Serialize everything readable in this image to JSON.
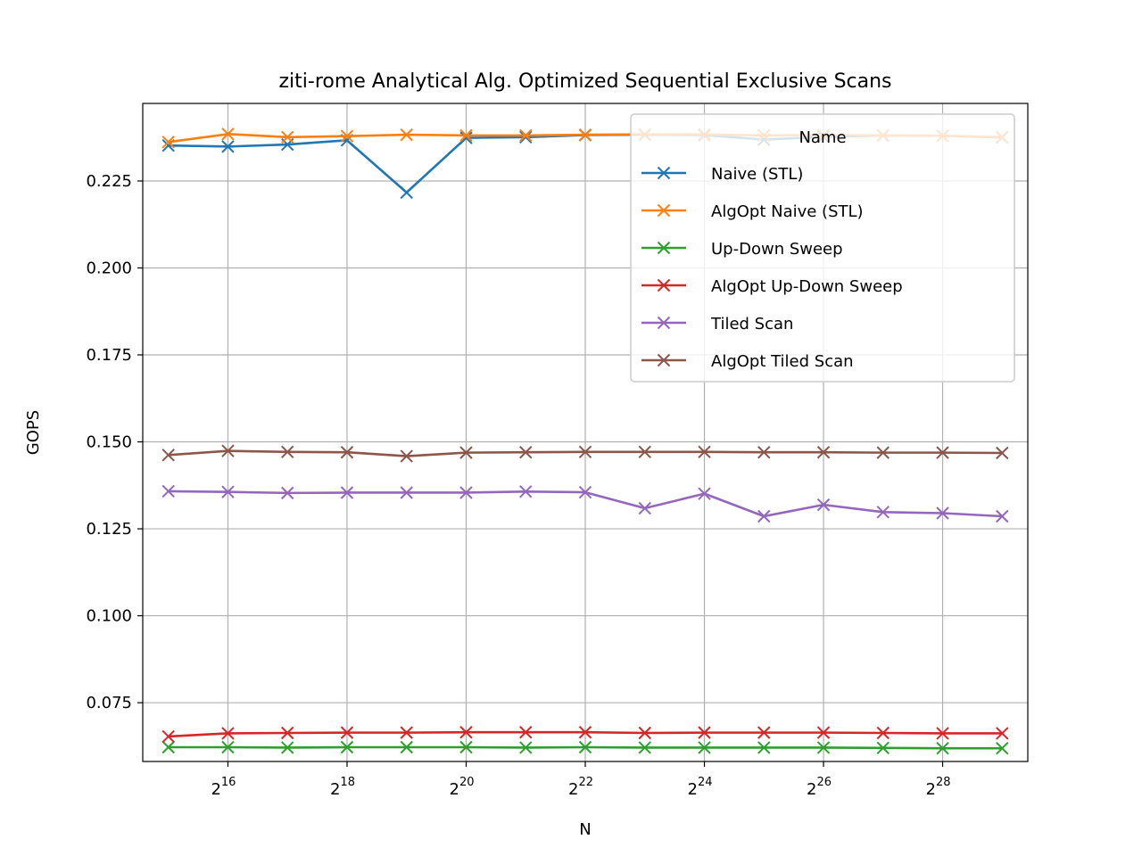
{
  "chart_data": {
    "type": "line",
    "title": "ziti-rome Analytical Alg. Optimized Sequential Exclusive Scans",
    "xlabel": "N",
    "ylabel": "GOPS",
    "x_scale": "log2",
    "x_exponents": [
      15,
      16,
      17,
      18,
      19,
      20,
      21,
      22,
      23,
      24,
      25,
      26,
      27,
      28,
      29
    ],
    "x_tick_exponents": [
      16,
      18,
      20,
      22,
      24,
      26,
      28
    ],
    "x_tick_base": "2",
    "xlim_exponents": [
      14.57,
      29.43
    ],
    "ylim": [
      0.0581,
      0.2473
    ],
    "y_ticks": [
      0.075,
      0.1,
      0.125,
      0.15,
      0.175,
      0.2,
      0.225
    ],
    "y_tick_labels": [
      "0.075",
      "0.100",
      "0.125",
      "0.150",
      "0.175",
      "0.200",
      "0.225"
    ],
    "grid": true,
    "marker": "x",
    "legend": {
      "title": "Name",
      "placement": "top-right"
    },
    "series": [
      {
        "name": "Naive (STL)",
        "color": "#1f77b4",
        "values": [
          0.2352,
          0.2349,
          0.2355,
          0.2367,
          0.2217,
          0.2374,
          0.2376,
          0.2382,
          0.2383,
          0.2382,
          0.2369,
          0.2377,
          0.2381,
          0.238,
          0.2375
        ]
      },
      {
        "name": "AlgOpt Naive (STL)",
        "color": "#ff7f0e",
        "values": [
          0.2362,
          0.2385,
          0.2376,
          0.2379,
          0.2383,
          0.2381,
          0.2381,
          0.2383,
          0.2384,
          0.2384,
          0.2381,
          0.2382,
          0.2381,
          0.238,
          0.2376
        ]
      },
      {
        "name": "Up-Down Sweep",
        "color": "#2ca02c",
        "values": [
          0.0622,
          0.0622,
          0.0621,
          0.0622,
          0.0622,
          0.0622,
          0.0621,
          0.0622,
          0.0621,
          0.0621,
          0.0621,
          0.0621,
          0.062,
          0.0619,
          0.0619
        ]
      },
      {
        "name": "AlgOpt Up-Down Sweep",
        "color": "#d62728",
        "values": [
          0.0653,
          0.0662,
          0.0663,
          0.0664,
          0.0664,
          0.0665,
          0.0665,
          0.0665,
          0.0663,
          0.0664,
          0.0664,
          0.0664,
          0.0663,
          0.0662,
          0.0662
        ]
      },
      {
        "name": "Tiled Scan",
        "color": "#9467bd",
        "values": [
          0.1358,
          0.1356,
          0.1353,
          0.1354,
          0.1354,
          0.1354,
          0.1357,
          0.1355,
          0.1309,
          0.1351,
          0.1286,
          0.1319,
          0.1298,
          0.1295,
          0.1286
        ]
      },
      {
        "name": "AlgOpt Tiled Scan",
        "color": "#8c564b",
        "values": [
          0.1462,
          0.1474,
          0.1471,
          0.147,
          0.1459,
          0.1469,
          0.147,
          0.1471,
          0.1471,
          0.1471,
          0.147,
          0.147,
          0.1469,
          0.1469,
          0.1468
        ]
      }
    ]
  }
}
